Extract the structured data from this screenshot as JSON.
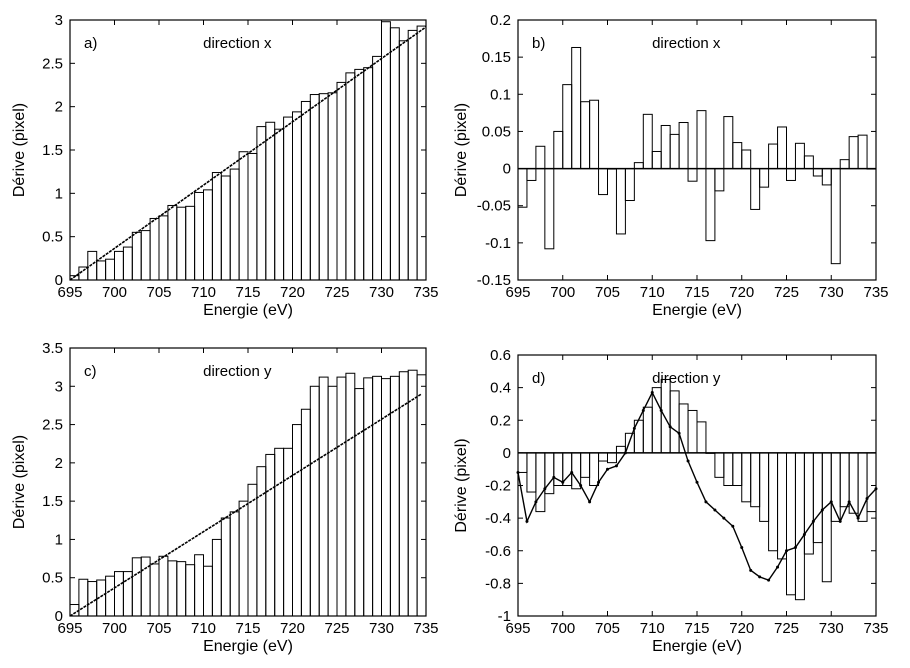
{
  "chart_data": [
    {
      "type": "bar",
      "panel_label": "a)",
      "title": "direction x",
      "xlabel": "Energie (eV)",
      "ylabel": "Dérive (pixel)",
      "xlim": [
        695,
        735
      ],
      "ylim": [
        0,
        3
      ],
      "xticks": [
        695,
        700,
        705,
        710,
        715,
        720,
        725,
        730,
        735
      ],
      "yticks": [
        0,
        0.5,
        1,
        1.5,
        2,
        2.5,
        3
      ],
      "ytick_labels": [
        "0",
        "0.5",
        "1",
        "1.5",
        "2",
        "2.5",
        "3"
      ],
      "bar_x_start": 695,
      "bar_width": 1,
      "values": [
        0.05,
        0.15,
        0.33,
        0.22,
        0.24,
        0.33,
        0.38,
        0.55,
        0.57,
        0.71,
        0.74,
        0.86,
        0.84,
        0.85,
        1.01,
        1.04,
        1.24,
        1.2,
        1.28,
        1.48,
        1.46,
        1.77,
        1.82,
        1.74,
        1.88,
        1.94,
        2.06,
        2.14,
        2.15,
        2.16,
        2.28,
        2.39,
        2.43,
        2.45,
        2.58,
        2.98,
        2.91,
        2.76,
        2.88,
        2.93
      ],
      "fit_line": {
        "x": [
          695,
          735
        ],
        "y": [
          0.0,
          2.92
        ]
      },
      "residual_line": null
    },
    {
      "type": "bar",
      "panel_label": "b)",
      "title": "direction x",
      "xlabel": "Energie (eV)",
      "ylabel": "Dérive (pixel)",
      "xlim": [
        695,
        735
      ],
      "ylim": [
        -0.15,
        0.2
      ],
      "xticks": [
        695,
        700,
        705,
        710,
        715,
        720,
        725,
        730,
        735
      ],
      "yticks": [
        -0.15,
        -0.1,
        -0.05,
        0,
        0.05,
        0.1,
        0.15,
        0.2
      ],
      "ytick_labels": [
        "-0.15",
        "-0.1",
        "-0.05",
        "0",
        "0.05",
        "0.1",
        "0.15",
        "0.2"
      ],
      "bar_x_start": 695,
      "bar_width": 1,
      "values": [
        -0.052,
        -0.016,
        0.03,
        -0.108,
        0.05,
        0.113,
        0.163,
        0.09,
        0.092,
        -0.035,
        0.0,
        -0.088,
        -0.043,
        0.008,
        0.073,
        0.023,
        0.058,
        0.046,
        0.062,
        -0.017,
        0.078,
        -0.097,
        -0.03,
        0.07,
        0.035,
        0.025,
        -0.055,
        -0.025,
        0.033,
        0.056,
        -0.016,
        0.034,
        0.017,
        -0.01,
        -0.022,
        -0.128,
        0.012,
        0.043,
        0.045,
        0.0
      ],
      "fit_line": null,
      "residual_line": null
    },
    {
      "type": "bar",
      "panel_label": "c)",
      "title": "direction y",
      "xlabel": "Energie (eV)",
      "ylabel": "Dérive (pixel)",
      "xlim": [
        695,
        735
      ],
      "ylim": [
        0,
        3.5
      ],
      "xticks": [
        695,
        700,
        705,
        710,
        715,
        720,
        725,
        730,
        735
      ],
      "yticks": [
        0,
        0.5,
        1,
        1.5,
        2,
        2.5,
        3,
        3.5
      ],
      "ytick_labels": [
        "0",
        "0.5",
        "1",
        "1.5",
        "2",
        "2.5",
        "3",
        "3.5"
      ],
      "bar_x_start": 695,
      "bar_width": 1,
      "values": [
        0.15,
        0.48,
        0.45,
        0.47,
        0.52,
        0.58,
        0.58,
        0.76,
        0.77,
        0.68,
        0.78,
        0.72,
        0.71,
        0.67,
        0.8,
        0.65,
        1.0,
        1.28,
        1.36,
        1.5,
        1.72,
        1.95,
        2.11,
        2.19,
        2.19,
        2.5,
        2.7,
        3.0,
        3.12,
        3.0,
        3.12,
        3.17,
        2.97,
        3.11,
        3.13,
        3.1,
        3.13,
        3.19,
        3.21,
        3.15
      ],
      "fit_line": {
        "x": [
          695,
          734.5
        ],
        "y": [
          0.0,
          2.9
        ]
      },
      "residual_line": null
    },
    {
      "type": "bar",
      "panel_label": "d)",
      "title": "direction y",
      "xlabel": "Energie (eV)",
      "ylabel": "Dérive (pixel)",
      "xlim": [
        695,
        735
      ],
      "ylim": [
        -1,
        0.6
      ],
      "xticks": [
        695,
        700,
        705,
        710,
        715,
        720,
        725,
        730,
        735
      ],
      "yticks": [
        -1,
        -0.8,
        -0.6,
        -0.4,
        -0.2,
        0,
        0.2,
        0.4,
        0.6
      ],
      "ytick_labels": [
        "-1",
        "-0.8",
        "-0.6",
        "-0.4",
        "-0.2",
        "0",
        "0.2",
        "0.4",
        "0.6"
      ],
      "bar_x_start": 695,
      "bar_width": 1,
      "values": [
        -0.12,
        -0.24,
        -0.36,
        -0.25,
        -0.2,
        -0.2,
        -0.22,
        -0.15,
        -0.2,
        -0.05,
        -0.06,
        0.04,
        0.12,
        0.2,
        0.28,
        0.4,
        0.45,
        0.38,
        0.3,
        0.26,
        0.19,
        0.0,
        -0.15,
        -0.2,
        -0.2,
        -0.3,
        -0.33,
        -0.42,
        -0.6,
        -0.65,
        -0.87,
        -0.9,
        -0.62,
        -0.55,
        -0.79,
        -0.42,
        -0.33,
        -0.37,
        -0.42,
        -0.36
      ],
      "fit_line": null,
      "residual_line": {
        "x": [
          695,
          696,
          697,
          698,
          699,
          700,
          701,
          702,
          703,
          704,
          705,
          706,
          707,
          708,
          709,
          710,
          711,
          712,
          713,
          714,
          715,
          716,
          717,
          718,
          719,
          720,
          721,
          722,
          723,
          724,
          725,
          726,
          727,
          728,
          729,
          730,
          731,
          732,
          733,
          734,
          735
        ],
        "y": [
          -0.12,
          -0.42,
          -0.3,
          -0.22,
          -0.15,
          -0.18,
          -0.12,
          -0.2,
          -0.3,
          -0.18,
          -0.1,
          -0.08,
          0.0,
          0.15,
          0.26,
          0.37,
          0.26,
          0.16,
          0.12,
          -0.05,
          -0.18,
          -0.3,
          -0.35,
          -0.4,
          -0.45,
          -0.58,
          -0.72,
          -0.76,
          -0.78,
          -0.7,
          -0.6,
          -0.58,
          -0.5,
          -0.42,
          -0.35,
          -0.3,
          -0.42,
          -0.3,
          -0.4,
          -0.28,
          -0.22
        ]
      }
    }
  ]
}
